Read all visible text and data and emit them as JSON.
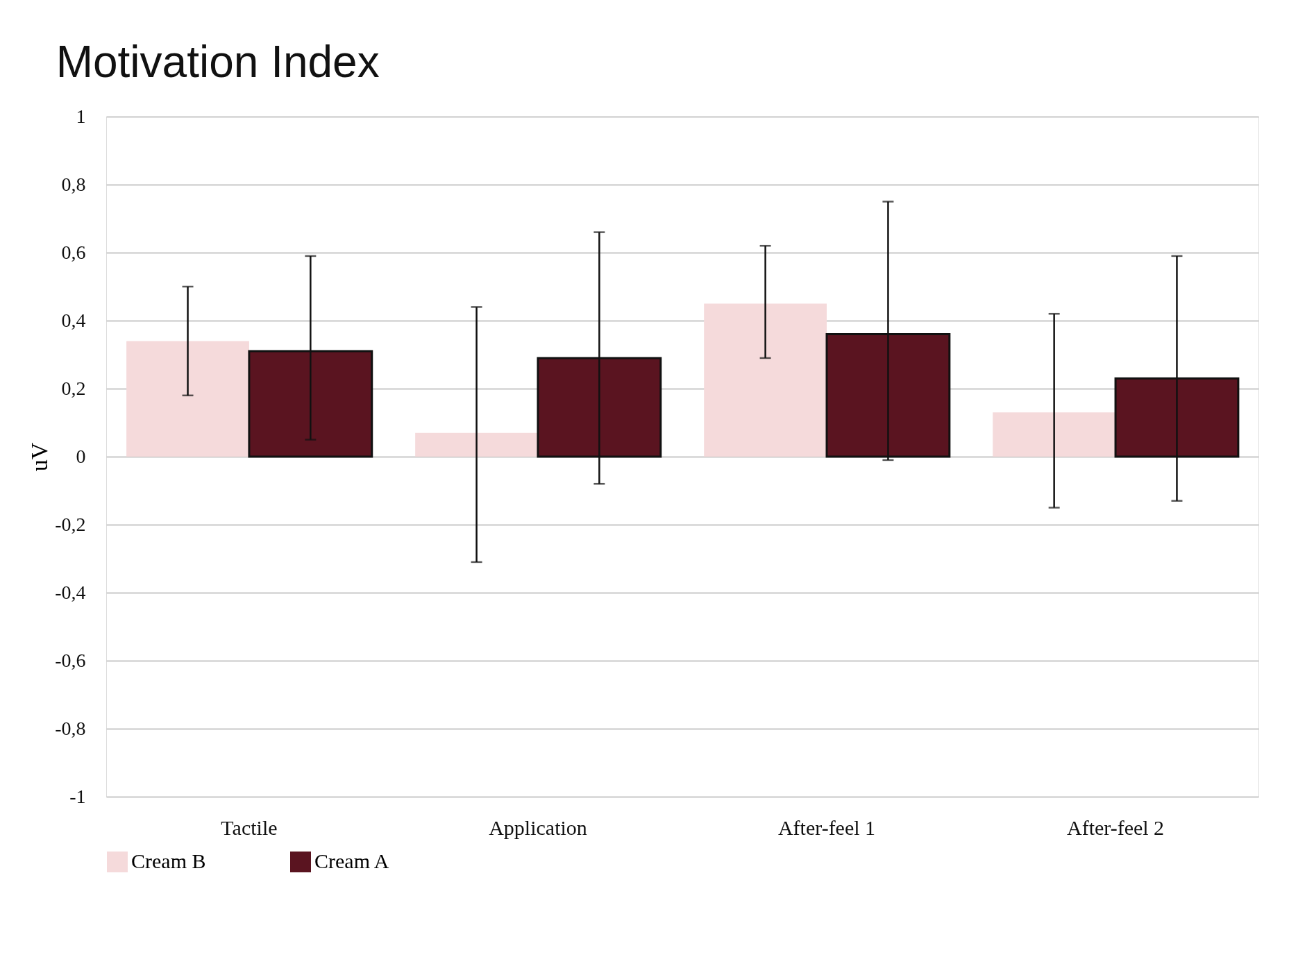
{
  "chart_data": {
    "type": "bar",
    "title": "Motivation Index",
    "ylabel": "uV",
    "categories": [
      "Tactile",
      "Application",
      "After-feel 1",
      "After-feel 2"
    ],
    "series": [
      {
        "name": "Cream B",
        "color": "#f5dadb",
        "values": [
          0.34,
          0.07,
          0.45,
          0.13
        ],
        "errors": [
          [
            0.18,
            0.5
          ],
          [
            -0.31,
            0.44
          ],
          [
            0.29,
            0.62
          ],
          [
            -0.15,
            0.42
          ]
        ]
      },
      {
        "name": "Cream A",
        "color": "#5a1420",
        "values": [
          0.31,
          0.29,
          0.36,
          0.23
        ],
        "errors": [
          [
            0.05,
            0.59
          ],
          [
            -0.08,
            0.66
          ],
          [
            -0.01,
            0.75
          ],
          [
            -0.13,
            0.59
          ]
        ]
      }
    ],
    "ylim": [
      -1,
      1
    ],
    "yticks": [
      {
        "value": -1,
        "label": "-1"
      },
      {
        "value": -0.8,
        "label": "-0,8"
      },
      {
        "value": -0.6,
        "label": "-0,6"
      },
      {
        "value": -0.4,
        "label": "-0,4"
      },
      {
        "value": -0.2,
        "label": "-0,2"
      },
      0,
      {
        "value": 0.2,
        "label": "0,2"
      },
      {
        "value": 0.4,
        "label": "0,4"
      },
      {
        "value": 0.6,
        "label": "0,6"
      },
      {
        "value": 0.8,
        "label": "0,8"
      },
      1
    ],
    "grid": "y",
    "legend": "bottom"
  }
}
